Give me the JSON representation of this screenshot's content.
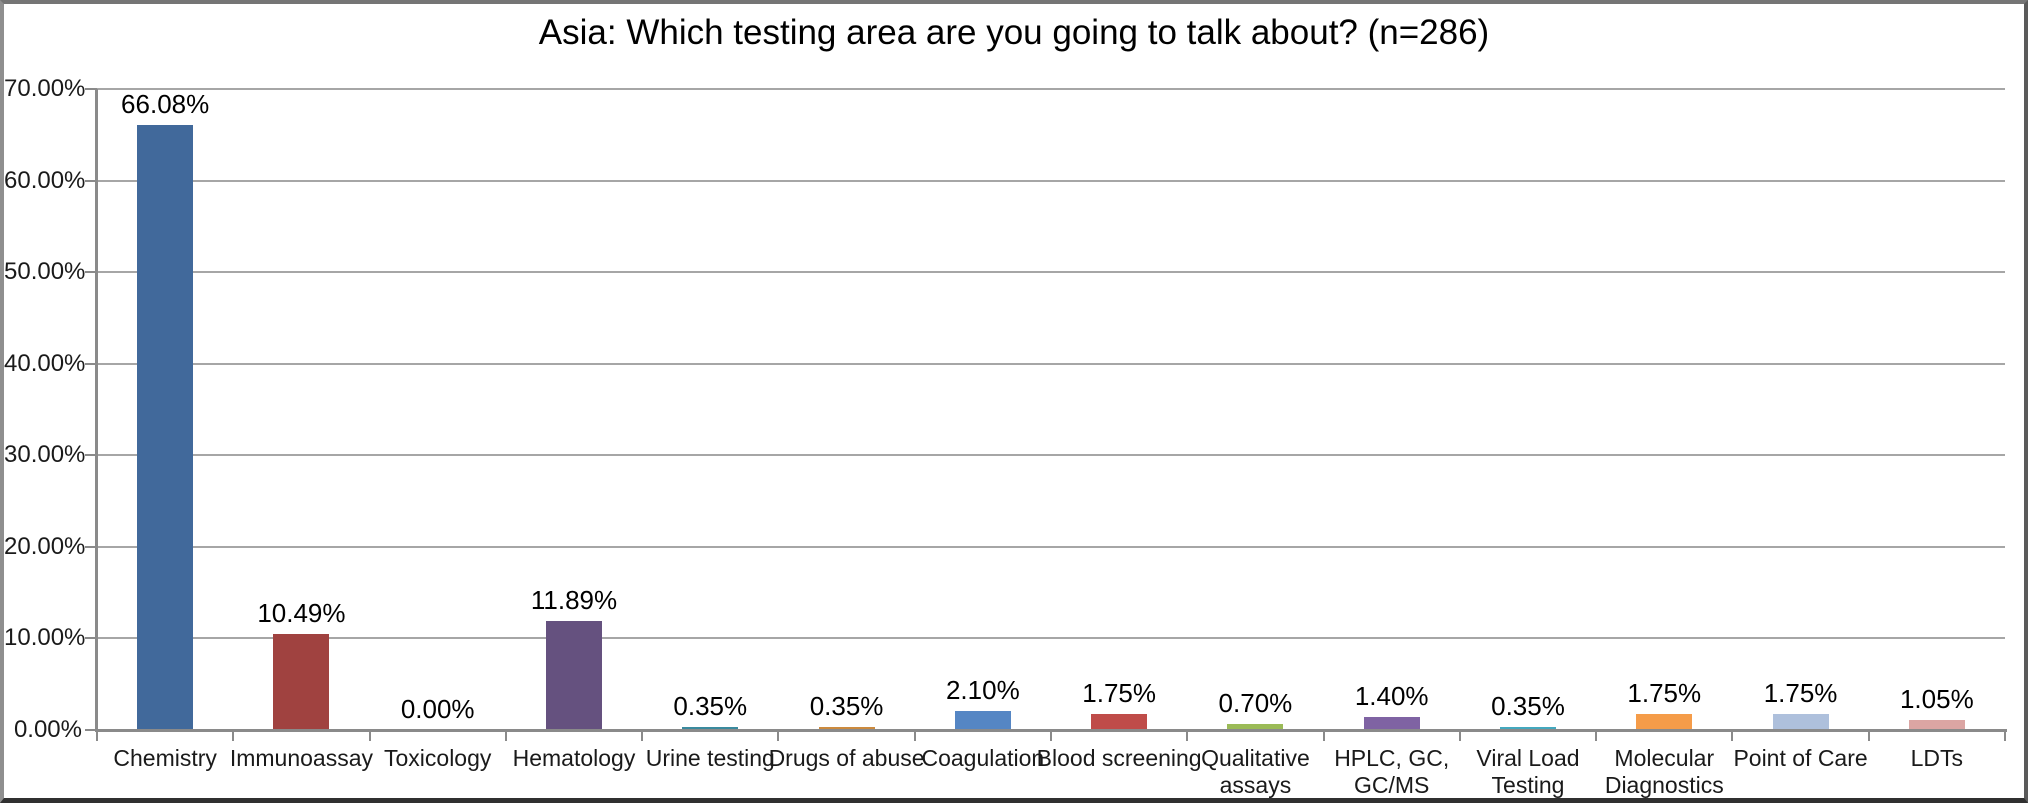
{
  "chart_data": {
    "type": "bar",
    "title": "Asia: Which testing area are you going to talk about? (n=286)",
    "categories": [
      "Chemistry",
      "Immunoassay",
      "Toxicology",
      "Hematology",
      "Urine testing",
      "Drugs of abuse",
      "Coagulation",
      "Blood screening",
      "Qualitative\nassays",
      "HPLC, GC,\nGC/MS",
      "Viral Load\nTesting",
      "Molecular\nDiagnostics",
      "Point of Care",
      "LDTs"
    ],
    "values": [
      66.08,
      10.49,
      0.0,
      11.89,
      0.35,
      0.35,
      2.1,
      1.75,
      0.7,
      1.4,
      0.35,
      1.75,
      1.75,
      1.05
    ],
    "value_labels": [
      "66.08%",
      "10.49%",
      "0.00%",
      "11.89%",
      "0.35%",
      "0.35%",
      "2.10%",
      "1.75%",
      "0.70%",
      "1.40%",
      "0.35%",
      "1.75%",
      "1.75%",
      "1.05%"
    ],
    "bar_colors": [
      "#41699B",
      "#A04240",
      null,
      "#65517F",
      "#3A8A9E",
      "#CC8A3E",
      "#5586C4",
      "#BF4C49",
      "#9BBB57",
      "#7F63A3",
      "#44A8BE",
      "#F59C49",
      "#AEC0DC",
      "#DBA5A3"
    ],
    "y_axis": {
      "min": 0,
      "max": 70,
      "step": 10,
      "tick_values": [
        0,
        10,
        20,
        30,
        40,
        50,
        60,
        70
      ],
      "tick_labels": [
        "0.00%",
        "10.00%",
        "20.00%",
        "30.00%",
        "40.00%",
        "50.00%",
        "60.00%",
        "70.00%"
      ]
    },
    "grid": true,
    "legend": null,
    "gridline_color": "#A6A6A6",
    "axis_color": "#8A8A8A",
    "text_color": "#1A1A1A"
  }
}
